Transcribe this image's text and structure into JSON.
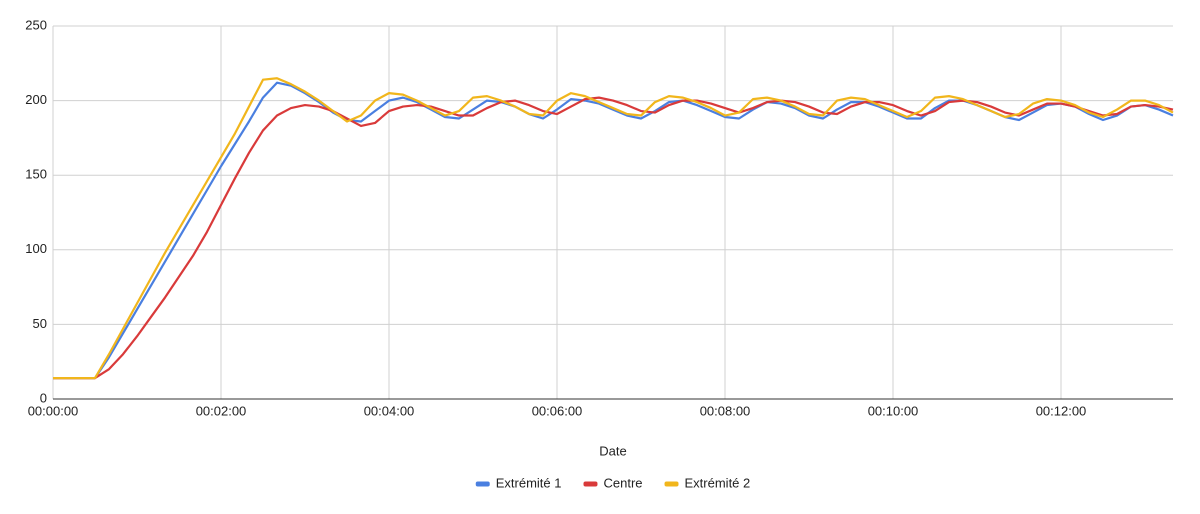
{
  "chart_data": {
    "type": "line",
    "x_label": "Date",
    "x": [
      0,
      10,
      20,
      30,
      40,
      50,
      60,
      70,
      80,
      90,
      100,
      110,
      120,
      130,
      140,
      150,
      160,
      170,
      180,
      190,
      200,
      210,
      220,
      230,
      240,
      250,
      260,
      270,
      280,
      290,
      300,
      310,
      320,
      330,
      340,
      350,
      360,
      370,
      380,
      390,
      400,
      410,
      420,
      430,
      440,
      450,
      460,
      470,
      480,
      490,
      500,
      510,
      520,
      530,
      540,
      550,
      560,
      570,
      580,
      590,
      600,
      610,
      620,
      630,
      640,
      650,
      660,
      670,
      680,
      690,
      700,
      710,
      720,
      730,
      740,
      750,
      760,
      770,
      780,
      790,
      800
    ],
    "series": [
      {
        "name": "Extrémité 1",
        "color": "#4a7fe0",
        "values": [
          14,
          14,
          14,
          14,
          28,
          44,
          60,
          76,
          92,
          108,
          124,
          140,
          156,
          171,
          186,
          202,
          212,
          210,
          205,
          199,
          192,
          187,
          186,
          193,
          200,
          202,
          199,
          194,
          189,
          188,
          194,
          200,
          199,
          196,
          191,
          188,
          194,
          201,
          200,
          198,
          194,
          190,
          188,
          193,
          199,
          200,
          197,
          193,
          189,
          188,
          194,
          199,
          198,
          195,
          190,
          188,
          194,
          199,
          199,
          196,
          192,
          188,
          188,
          195,
          200,
          200,
          197,
          193,
          189,
          187,
          192,
          197,
          198,
          196,
          191,
          187,
          190,
          196,
          197,
          194,
          190
        ]
      },
      {
        "name": "Centre",
        "color": "#d93a3a",
        "values": [
          14,
          14,
          14,
          14,
          20,
          30,
          42,
          55,
          68,
          82,
          96,
          112,
          130,
          148,
          165,
          180,
          190,
          195,
          197,
          196,
          193,
          188,
          183,
          185,
          193,
          196,
          197,
          196,
          193,
          190,
          190,
          195,
          199,
          200,
          197,
          193,
          191,
          196,
          201,
          202,
          200,
          197,
          193,
          192,
          197,
          200,
          200,
          198,
          195,
          192,
          195,
          199,
          200,
          199,
          196,
          192,
          191,
          196,
          199,
          199,
          197,
          193,
          190,
          193,
          199,
          200,
          199,
          196,
          192,
          190,
          194,
          198,
          198,
          196,
          193,
          190,
          191,
          196,
          197,
          196,
          194
        ]
      },
      {
        "name": "Extrémité 2",
        "color": "#f1b61c",
        "values": [
          14,
          14,
          14,
          14,
          30,
          47,
          64,
          81,
          98,
          114,
          130,
          146,
          162,
          178,
          196,
          214,
          215,
          211,
          206,
          200,
          193,
          186,
          190,
          200,
          205,
          204,
          200,
          195,
          190,
          193,
          202,
          203,
          200,
          196,
          191,
          190,
          200,
          205,
          203,
          199,
          195,
          191,
          190,
          199,
          203,
          202,
          199,
          195,
          190,
          192,
          201,
          202,
          200,
          196,
          191,
          190,
          200,
          202,
          201,
          197,
          193,
          189,
          193,
          202,
          203,
          201,
          197,
          193,
          189,
          191,
          198,
          201,
          200,
          197,
          192,
          189,
          194,
          200,
          200,
          197,
          192
        ]
      }
    ],
    "xlim": [
      0,
      800
    ],
    "xticks": [
      {
        "value": 0,
        "label": "00:00:00"
      },
      {
        "value": 120,
        "label": "00:02:00"
      },
      {
        "value": 240,
        "label": "00:04:00"
      },
      {
        "value": 360,
        "label": "00:06:00"
      },
      {
        "value": 480,
        "label": "00:08:00"
      },
      {
        "value": 600,
        "label": "00:10:00"
      },
      {
        "value": 720,
        "label": "00:12:00"
      }
    ],
    "ylim": [
      0,
      250
    ],
    "yticks": [
      0,
      50,
      100,
      150,
      200,
      250
    ],
    "grid": true,
    "legend": "bottom"
  }
}
